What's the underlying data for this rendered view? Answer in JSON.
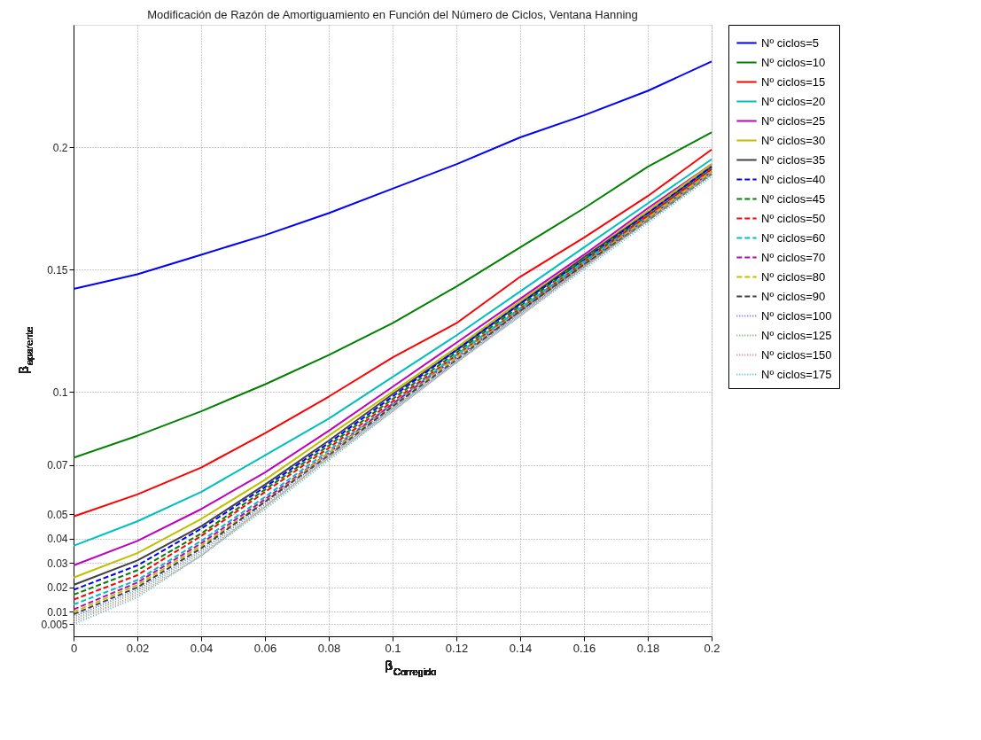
{
  "chart_data": {
    "type": "line",
    "title": "Modificación de Razón de Amortiguamiento en Función del Número de Ciclos, Ventana Hanning",
    "xlabel": "β$_{Corregido}$",
    "ylabel": "β$_{aparente}$",
    "x": [
      0,
      0.02,
      0.04,
      0.06,
      0.08,
      0.1,
      0.12,
      0.14,
      0.16,
      0.18,
      0.2
    ],
    "xlim": [
      0,
      0.2
    ],
    "xticks": [
      0,
      0.02,
      0.04,
      0.06,
      0.08,
      0.1,
      0.12,
      0.14,
      0.16,
      0.18,
      0.2
    ],
    "ylim": [
      0,
      0.25
    ],
    "yticks": [
      0.005,
      0.01,
      0.02,
      0.03,
      0.04,
      0.05,
      0.07,
      0.1,
      0.15,
      0.2
    ],
    "grid": true,
    "legend": "right",
    "marker": "none",
    "series": [
      {
        "name": "Nº ciclos=5",
        "color": "#0000ff",
        "line_style": "solid",
        "values": [
          0.142,
          0.148,
          0.156,
          0.164,
          0.173,
          0.183,
          0.193,
          0.204,
          0.213,
          0.223,
          0.235
        ]
      },
      {
        "name": "Nº ciclos=10",
        "color": "#008000",
        "line_style": "solid",
        "values": [
          0.073,
          0.082,
          0.092,
          0.103,
          0.115,
          0.128,
          0.143,
          0.159,
          0.175,
          0.192,
          0.206
        ]
      },
      {
        "name": "Nº ciclos=15",
        "color": "#ff0000",
        "line_style": "solid",
        "values": [
          0.049,
          0.058,
          0.069,
          0.083,
          0.098,
          0.114,
          0.128,
          0.147,
          0.163,
          0.18,
          0.199
        ]
      },
      {
        "name": "Nº ciclos=20",
        "color": "#00bfbf",
        "line_style": "solid",
        "values": [
          0.037,
          0.047,
          0.059,
          0.074,
          0.089,
          0.106,
          0.123,
          0.141,
          0.159,
          0.177,
          0.195
        ]
      },
      {
        "name": "Nº ciclos=25",
        "color": "#bf00bf",
        "line_style": "solid",
        "values": [
          0.029,
          0.039,
          0.052,
          0.067,
          0.084,
          0.102,
          0.12,
          0.138,
          0.156,
          0.175,
          0.193
        ]
      },
      {
        "name": "Nº ciclos=30",
        "color": "#bfbf00",
        "line_style": "solid",
        "values": [
          0.024,
          0.034,
          0.048,
          0.064,
          0.082,
          0.1,
          0.118,
          0.137,
          0.155,
          0.174,
          0.193
        ]
      },
      {
        "name": "Nº ciclos=35",
        "color": "#404040",
        "line_style": "solid",
        "values": [
          0.021,
          0.031,
          0.045,
          0.062,
          0.08,
          0.099,
          0.117,
          0.136,
          0.155,
          0.173,
          0.192
        ]
      },
      {
        "name": "Nº ciclos=40",
        "color": "#0000ff",
        "line_style": "dashed",
        "values": [
          0.019,
          0.029,
          0.044,
          0.061,
          0.079,
          0.098,
          0.117,
          0.136,
          0.154,
          0.173,
          0.192
        ]
      },
      {
        "name": "Nº ciclos=45",
        "color": "#008000",
        "line_style": "dashed",
        "values": [
          0.017,
          0.027,
          0.042,
          0.06,
          0.078,
          0.097,
          0.116,
          0.135,
          0.154,
          0.172,
          0.191
        ]
      },
      {
        "name": "Nº ciclos=50",
        "color": "#ff0000",
        "line_style": "dashed",
        "values": [
          0.015,
          0.025,
          0.041,
          0.059,
          0.077,
          0.096,
          0.115,
          0.134,
          0.153,
          0.172,
          0.191
        ]
      },
      {
        "name": "Nº ciclos=60",
        "color": "#00bfbf",
        "line_style": "dashed",
        "values": [
          0.013,
          0.023,
          0.039,
          0.057,
          0.076,
          0.095,
          0.115,
          0.134,
          0.153,
          0.171,
          0.19
        ]
      },
      {
        "name": "Nº ciclos=70",
        "color": "#bf00bf",
        "line_style": "dashed",
        "values": [
          0.011,
          0.022,
          0.038,
          0.056,
          0.075,
          0.095,
          0.114,
          0.133,
          0.152,
          0.171,
          0.19
        ]
      },
      {
        "name": "Nº ciclos=80",
        "color": "#bfbf00",
        "line_style": "dashed",
        "values": [
          0.01,
          0.021,
          0.037,
          0.055,
          0.075,
          0.094,
          0.114,
          0.133,
          0.152,
          0.171,
          0.19
        ]
      },
      {
        "name": "Nº ciclos=90",
        "color": "#404040",
        "line_style": "dashed",
        "values": [
          0.009,
          0.02,
          0.036,
          0.055,
          0.074,
          0.094,
          0.113,
          0.133,
          0.152,
          0.17,
          0.189
        ]
      },
      {
        "name": "Nº ciclos=100",
        "color": "#6666ff",
        "line_style": "dotted",
        "values": [
          0.008,
          0.019,
          0.035,
          0.054,
          0.074,
          0.093,
          0.113,
          0.132,
          0.151,
          0.17,
          0.189
        ]
      },
      {
        "name": "Nº ciclos=125",
        "color": "#66b366",
        "line_style": "dotted",
        "values": [
          0.007,
          0.018,
          0.034,
          0.053,
          0.073,
          0.093,
          0.112,
          0.132,
          0.151,
          0.17,
          0.189
        ]
      },
      {
        "name": "Nº ciclos=150",
        "color": "#e07070",
        "line_style": "dotted",
        "values": [
          0.006,
          0.017,
          0.033,
          0.053,
          0.073,
          0.092,
          0.112,
          0.131,
          0.151,
          0.17,
          0.189
        ]
      },
      {
        "name": "Nº ciclos=175",
        "color": "#40c0d0",
        "line_style": "dotted",
        "values": [
          0.005,
          0.016,
          0.033,
          0.052,
          0.072,
          0.092,
          0.112,
          0.131,
          0.15,
          0.169,
          0.188
        ]
      }
    ]
  }
}
